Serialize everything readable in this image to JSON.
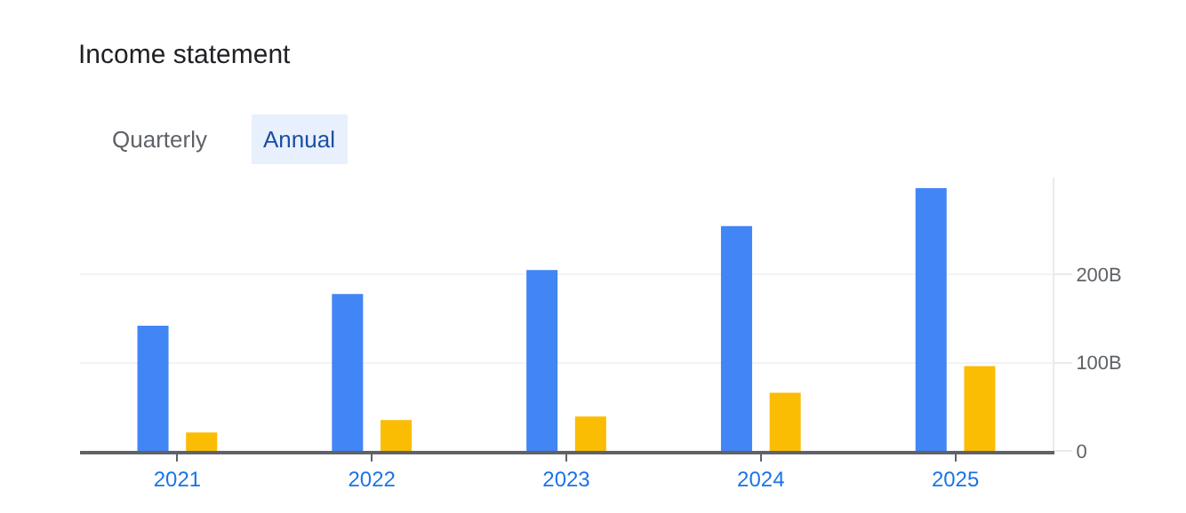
{
  "chart_data": {
    "type": "bar",
    "title": "Income statement",
    "annotations": [
      "Quarterly",
      "Annual"
    ],
    "categories": [
      "2021",
      "2022",
      "2023",
      "2024",
      "2025"
    ],
    "series": [
      {
        "color": "#4285f4",
        "values": [
          142,
          178,
          205,
          255,
          298
        ]
      },
      {
        "color": "#fbbc04",
        "values": [
          21,
          35,
          39,
          66,
          96
        ]
      }
    ],
    "yticks": [
      0,
      {
        "value": 100,
        "label": "100B"
      },
      {
        "value": 200,
        "label": "200B"
      }
    ],
    "ylim": [
      0,
      310
    ],
    "grid": "y"
  }
}
